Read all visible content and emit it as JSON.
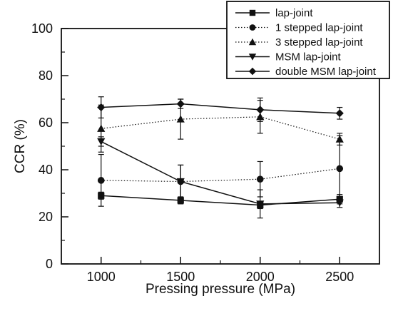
{
  "chart_data": {
    "type": "line",
    "title": "",
    "xlabel": "Pressing pressure (MPa)",
    "ylabel": "CCR (%)",
    "x": [
      1000,
      1500,
      2000,
      2500
    ],
    "x_ticks": [
      1000,
      1500,
      2000,
      2500
    ],
    "y_ticks": [
      0,
      20,
      40,
      60,
      80,
      100
    ],
    "xlim": [
      750,
      2750
    ],
    "ylim": [
      0,
      100
    ],
    "grid": false,
    "legend_position": "top-right",
    "series": [
      {
        "name": "lap-joint",
        "marker": "square",
        "line_style": "solid",
        "values": [
          29,
          27,
          25,
          27.5
        ],
        "errors": [
          1.5,
          1.5,
          1.5,
          2
        ]
      },
      {
        "name": "1 stepped lap-joint",
        "marker": "circle",
        "line_style": "dotted",
        "values": [
          35.5,
          35,
          36,
          40.5
        ],
        "errors": [
          11,
          7,
          7.5,
          14
        ]
      },
      {
        "name": "3 stepped lap-joint",
        "marker": "triangle-up",
        "line_style": "dotted",
        "values": [
          57.5,
          61.5,
          62.5,
          53
        ],
        "errors": [
          10,
          8.5,
          7,
          2.5
        ]
      },
      {
        "name": "MSM lap-joint",
        "marker": "triangle-down",
        "line_style": "solid",
        "values": [
          52,
          35,
          25.5,
          26
        ],
        "errors": [
          2,
          7,
          6,
          2
        ]
      },
      {
        "name": "double MSM lap-joint",
        "marker": "diamond",
        "line_style": "solid",
        "values": [
          66.5,
          68,
          65.5,
          64
        ],
        "errors": [
          4.5,
          2,
          5,
          2.5
        ]
      }
    ]
  }
}
